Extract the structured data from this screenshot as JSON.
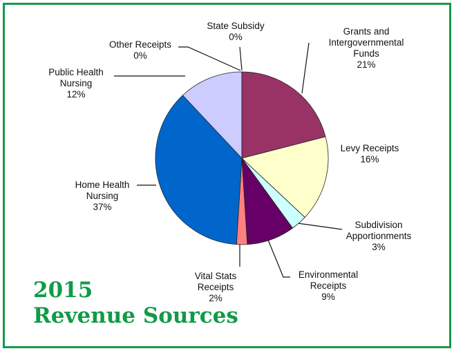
{
  "chart_data": {
    "type": "pie",
    "title": "2015\nRevenue Sources",
    "categories": [
      "State Subsidy",
      "Grants and\nIntergovernmental\nFunds",
      "Levy Receipts",
      "Subdivision\nApportionments",
      "Environmental\nReceipts",
      "Vital Stats\nReceipts",
      "Home Health\nNursing",
      "Public Health\nNursing",
      "Other Receipts"
    ],
    "values": [
      0,
      21,
      16,
      3,
      9,
      2,
      37,
      12,
      0
    ],
    "value_labels": [
      "0%",
      "21%",
      "16%",
      "3%",
      "9%",
      "2%",
      "37%",
      "12%",
      "0%"
    ],
    "colors": [
      "#111111",
      "#993366",
      "#ffffcc",
      "#ccffff",
      "#660066",
      "#ff8080",
      "#0066cc",
      "#ccccff",
      "#ffffff"
    ]
  }
}
